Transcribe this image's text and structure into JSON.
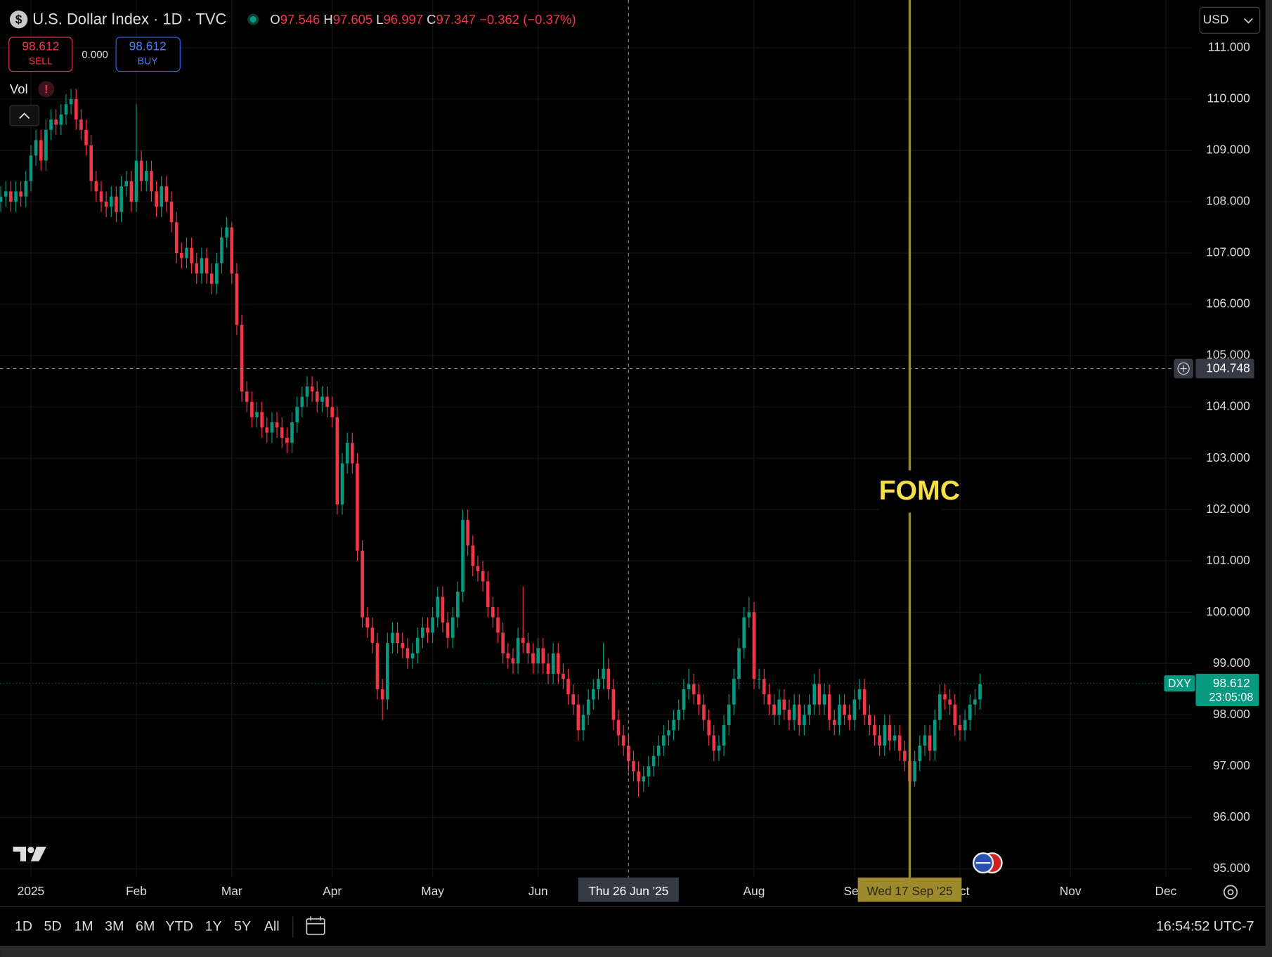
{
  "chart_data": {
    "type": "candlestick",
    "title": "U.S. Dollar Index · 1D · TVC",
    "up_color": "#089981",
    "down_color": "#f23645",
    "open": [
      108.0,
      108.1,
      108.2,
      108.0,
      108.2,
      108.1,
      108.4,
      108.9,
      109.2,
      108.8,
      109.4,
      109.6,
      109.5,
      109.7,
      109.9,
      110.0,
      109.6,
      109.4,
      109.1,
      108.4,
      108.2,
      108.0,
      107.9,
      108.1,
      107.8,
      108.3,
      108.4,
      108.0,
      108.8,
      108.4,
      108.6,
      108.2,
      107.9,
      108.3,
      108.0,
      107.6,
      107.0,
      106.9,
      107.1,
      106.8,
      106.6,
      106.9,
      106.6,
      106.4,
      106.8,
      107.3,
      107.5,
      106.6,
      105.6,
      104.3,
      104.1,
      103.8,
      103.9,
      103.6,
      103.5,
      103.7,
      103.6,
      103.4,
      103.3,
      103.7,
      104.0,
      104.2,
      104.4,
      104.3,
      104.1,
      104.2,
      104.0,
      103.8,
      102.1,
      102.9,
      103.3,
      102.9,
      101.2,
      99.9,
      99.7,
      99.4,
      98.5,
      98.3,
      99.4,
      99.6,
      99.4,
      99.3,
      99.1,
      99.2,
      99.5,
      99.7,
      99.6,
      99.9,
      100.3,
      99.8,
      99.5,
      99.9,
      100.4,
      101.8,
      101.3,
      100.9,
      100.8,
      100.6,
      100.1,
      99.9,
      99.6,
      99.2,
      99.1,
      99.0,
      99.5,
      99.4,
      99.2,
      99.0,
      99.3,
      99.0,
      98.8,
      99.2,
      98.8,
      98.7,
      98.4,
      98.2,
      97.7,
      98.0,
      98.3,
      98.5,
      98.7,
      98.9,
      98.5,
      97.9,
      97.6,
      97.4,
      97.1,
      96.9,
      96.7,
      96.8,
      97.0,
      97.2,
      97.4,
      97.6,
      97.7,
      97.9,
      98.1,
      98.5,
      98.6,
      98.4,
      98.2,
      97.9,
      97.6,
      97.3,
      97.4,
      97.8,
      98.2,
      98.7,
      99.3,
      99.9,
      100.0,
      98.7,
      98.7,
      98.4,
      98.2,
      98.0,
      98.3,
      98.1,
      97.9,
      98.2,
      97.8,
      98.0,
      98.2,
      98.6,
      98.2,
      98.4,
      97.9,
      97.8,
      98.2,
      98.0,
      97.9,
      98.3,
      98.5,
      98.0,
      97.8,
      97.6,
      97.4,
      97.8,
      97.5,
      97.6,
      97.3,
      97.1,
      96.7,
      97.1,
      97.4,
      97.6,
      97.3,
      97.9,
      98.4,
      98.3,
      98.2,
      97.8,
      97.7,
      97.9,
      98.2,
      98.3
    ],
    "high": [
      108.3,
      108.4,
      108.4,
      108.4,
      108.4,
      108.6,
      109.1,
      109.4,
      109.4,
      109.6,
      109.8,
      109.8,
      109.9,
      110.1,
      110.2,
      110.2,
      109.8,
      109.6,
      109.3,
      108.6,
      108.4,
      108.2,
      108.3,
      108.3,
      108.5,
      108.6,
      108.6,
      109.9,
      109.0,
      108.8,
      108.8,
      108.4,
      108.5,
      108.5,
      108.2,
      107.8,
      107.2,
      107.3,
      107.3,
      107.0,
      107.1,
      107.1,
      106.8,
      107.0,
      107.5,
      107.7,
      107.6,
      106.8,
      105.8,
      104.5,
      104.3,
      104.1,
      104.1,
      103.8,
      103.9,
      103.9,
      103.8,
      103.6,
      103.9,
      104.2,
      104.4,
      104.6,
      104.6,
      104.5,
      104.4,
      104.4,
      104.2,
      104.0,
      103.1,
      103.5,
      103.5,
      103.1,
      101.4,
      100.1,
      99.9,
      99.6,
      98.7,
      99.6,
      99.8,
      99.8,
      99.6,
      99.5,
      99.4,
      99.7,
      99.9,
      99.9,
      100.1,
      100.5,
      100.5,
      100.0,
      100.1,
      100.6,
      102.0,
      102.0,
      101.5,
      101.1,
      101.0,
      100.8,
      100.3,
      100.1,
      99.8,
      99.4,
      99.3,
      99.7,
      100.5,
      99.6,
      99.4,
      99.5,
      99.5,
      99.2,
      99.4,
      99.4,
      99.0,
      98.9,
      98.6,
      98.4,
      98.2,
      98.5,
      98.7,
      98.9,
      99.4,
      99.1,
      98.7,
      98.1,
      97.8,
      97.6,
      97.3,
      97.1,
      97.0,
      97.2,
      97.4,
      97.6,
      97.8,
      97.9,
      98.1,
      98.3,
      98.7,
      98.9,
      98.8,
      98.6,
      98.4,
      98.1,
      97.8,
      97.6,
      98.0,
      98.4,
      98.9,
      99.5,
      100.1,
      100.3,
      100.2,
      98.9,
      98.9,
      98.6,
      98.4,
      98.5,
      98.5,
      98.3,
      98.4,
      98.4,
      98.2,
      98.4,
      98.8,
      98.9,
      98.6,
      98.6,
      98.1,
      98.4,
      98.4,
      98.2,
      98.5,
      98.7,
      98.7,
      98.2,
      98.0,
      97.8,
      98.0,
      98.0,
      97.8,
      97.8,
      97.5,
      97.3,
      97.3,
      97.6,
      97.8,
      97.8,
      98.1,
      98.6,
      98.6,
      98.5,
      98.4,
      98.0,
      98.1,
      98.4,
      98.5,
      98.8
    ],
    "low": [
      107.8,
      107.9,
      107.8,
      107.8,
      107.9,
      107.9,
      108.2,
      108.7,
      108.6,
      108.6,
      109.2,
      109.3,
      109.3,
      109.5,
      109.7,
      109.4,
      109.2,
      108.9,
      108.2,
      108.0,
      107.8,
      107.7,
      107.7,
      107.6,
      107.6,
      108.1,
      107.8,
      107.8,
      108.2,
      108.2,
      108.0,
      107.7,
      107.7,
      107.8,
      107.4,
      106.8,
      106.7,
      106.7,
      106.6,
      106.4,
      106.4,
      106.4,
      106.2,
      106.2,
      106.6,
      107.1,
      106.4,
      105.4,
      104.1,
      103.9,
      103.6,
      103.6,
      103.4,
      103.3,
      103.3,
      103.4,
      103.2,
      103.1,
      103.1,
      103.5,
      103.8,
      104.0,
      104.1,
      103.9,
      103.9,
      103.8,
      103.6,
      101.9,
      101.9,
      102.7,
      102.7,
      101.0,
      99.7,
      99.5,
      99.2,
      98.3,
      97.9,
      98.1,
      99.2,
      99.2,
      99.1,
      98.9,
      98.9,
      99.0,
      99.3,
      99.4,
      99.4,
      99.7,
      99.6,
      99.3,
      99.3,
      99.7,
      100.2,
      101.1,
      100.7,
      100.6,
      100.4,
      99.9,
      99.7,
      99.4,
      99.0,
      98.9,
      98.8,
      98.8,
      99.2,
      99.0,
      98.8,
      98.8,
      98.8,
      98.6,
      98.6,
      98.6,
      98.5,
      98.2,
      98.0,
      97.5,
      97.5,
      97.8,
      98.1,
      98.3,
      98.5,
      98.3,
      97.7,
      97.4,
      97.2,
      96.9,
      96.7,
      96.4,
      96.5,
      96.6,
      96.8,
      97.0,
      97.2,
      97.4,
      97.5,
      97.7,
      97.9,
      98.3,
      98.2,
      98.0,
      97.7,
      97.4,
      97.1,
      97.1,
      97.2,
      97.6,
      98.0,
      98.5,
      99.1,
      99.7,
      98.5,
      98.5,
      98.2,
      98.0,
      97.8,
      97.8,
      97.9,
      97.7,
      97.7,
      97.6,
      97.6,
      97.8,
      98.0,
      98.0,
      98.0,
      97.7,
      97.6,
      97.6,
      97.8,
      97.7,
      97.7,
      98.1,
      97.8,
      97.6,
      97.4,
      97.2,
      97.2,
      97.3,
      97.3,
      97.1,
      96.9,
      96.6,
      96.6,
      96.9,
      97.2,
      97.1,
      97.1,
      97.7,
      98.1,
      98.0,
      97.6,
      97.5,
      97.5,
      97.7,
      98.0,
      98.1
    ],
    "close": [
      108.1,
      108.2,
      108.0,
      108.2,
      108.1,
      108.4,
      108.9,
      109.2,
      108.8,
      109.4,
      109.6,
      109.5,
      109.7,
      109.9,
      110.0,
      109.6,
      109.4,
      109.1,
      108.4,
      108.2,
      108.0,
      107.9,
      108.1,
      107.8,
      108.3,
      108.4,
      108.0,
      108.8,
      108.4,
      108.6,
      108.2,
      107.9,
      108.3,
      108.0,
      107.6,
      107.0,
      106.9,
      107.1,
      106.8,
      106.6,
      106.9,
      106.6,
      106.4,
      106.8,
      107.3,
      107.5,
      106.6,
      105.6,
      104.3,
      104.1,
      103.8,
      103.9,
      103.6,
      103.5,
      103.7,
      103.6,
      103.4,
      103.3,
      103.7,
      104.0,
      104.2,
      104.4,
      104.3,
      104.1,
      104.2,
      104.0,
      103.8,
      102.1,
      102.9,
      103.3,
      102.9,
      101.2,
      99.9,
      99.7,
      99.4,
      98.5,
      98.3,
      99.4,
      99.6,
      99.4,
      99.3,
      99.1,
      99.2,
      99.5,
      99.7,
      99.6,
      99.9,
      100.3,
      99.8,
      99.5,
      99.9,
      100.4,
      101.8,
      101.3,
      100.9,
      100.8,
      100.6,
      100.1,
      99.9,
      99.6,
      99.2,
      99.1,
      99.0,
      99.5,
      99.4,
      99.2,
      99.0,
      99.3,
      99.0,
      98.8,
      99.2,
      98.8,
      98.7,
      98.4,
      98.2,
      97.7,
      98.0,
      98.3,
      98.5,
      98.7,
      98.9,
      98.5,
      97.9,
      97.6,
      97.4,
      97.1,
      96.9,
      96.7,
      96.8,
      97.0,
      97.2,
      97.4,
      97.6,
      97.7,
      97.9,
      98.1,
      98.5,
      98.6,
      98.4,
      98.2,
      97.9,
      97.6,
      97.3,
      97.4,
      97.8,
      98.2,
      98.7,
      99.3,
      99.9,
      100.0,
      98.7,
      98.7,
      98.4,
      98.2,
      98.0,
      98.3,
      98.1,
      97.9,
      98.2,
      97.8,
      98.0,
      98.2,
      98.6,
      98.2,
      98.4,
      97.9,
      97.8,
      98.2,
      98.0,
      97.9,
      98.3,
      98.5,
      98.0,
      97.8,
      97.6,
      97.4,
      97.8,
      97.5,
      97.6,
      97.3,
      97.1,
      96.7,
      97.1,
      97.4,
      97.6,
      97.3,
      97.9,
      98.4,
      98.3,
      98.2,
      97.8,
      97.7,
      97.9,
      98.2,
      98.3,
      98.6
    ],
    "xlim": [
      -0.14,
      237.3
    ],
    "xticks": [
      {
        "value": 6,
        "label": "2025"
      },
      {
        "value": 27,
        "label": "Feb"
      },
      {
        "value": 46,
        "label": "Mar"
      },
      {
        "value": 66,
        "label": "Apr"
      },
      {
        "value": 86,
        "label": "May"
      },
      {
        "value": 107,
        "label": "Jun"
      },
      {
        "value": 150,
        "label": "Aug"
      },
      {
        "value": 170,
        "label": "Sep"
      },
      {
        "value": 191,
        "label": "Oct"
      },
      {
        "value": 213,
        "label": "Nov"
      },
      {
        "value": 232,
        "label": "Dec"
      }
    ],
    "ylim": [
      94.83,
      111.93
    ],
    "yticks": [
      {
        "value": 95,
        "label": "95.000"
      },
      {
        "value": 96,
        "label": "96.000"
      },
      {
        "value": 97,
        "label": "97.000"
      },
      {
        "value": 98,
        "label": "98.000"
      },
      {
        "value": 99,
        "label": "99.000"
      },
      {
        "value": 100,
        "label": "100.000"
      },
      {
        "value": 101,
        "label": "101.000"
      },
      {
        "value": 102,
        "label": "102.000"
      },
      {
        "value": 103,
        "label": "103.000"
      },
      {
        "value": 104,
        "label": "104.000"
      },
      {
        "value": 105,
        "label": "105.000"
      },
      {
        "value": 106,
        "label": "106.000"
      },
      {
        "value": 107,
        "label": "107.000"
      },
      {
        "value": 108,
        "label": "108.000"
      },
      {
        "value": 109,
        "label": "109.000"
      },
      {
        "value": 110,
        "label": "110.000"
      },
      {
        "value": 111,
        "label": "111.000"
      }
    ],
    "grid": true,
    "crosshair": {
      "index": 125,
      "date_label": "Thu 26 Jun '25",
      "price": 104.748
    },
    "event": {
      "index": 181,
      "label": "FOMC",
      "date_label": "Wed 17 Sep '25",
      "color": "#9c8a2c"
    },
    "symbol": "DXY",
    "last_price": 98.612,
    "countdown": "23:05:08",
    "legend": {
      "ohlc": [
        {
          "key": "O",
          "value": 97.546
        },
        {
          "key": "H",
          "value": 97.605
        },
        {
          "key": "L",
          "value": 96.997
        },
        {
          "key": "C",
          "value": 97.347
        }
      ],
      "change": "−0.362",
      "change_pct": "(−0.37%)"
    }
  },
  "trade": {
    "sell_price": 98.612,
    "sell": "SELL",
    "spread": "0.000",
    "buy_price": 98.612,
    "buy": "BUY"
  },
  "indicator": "Vol",
  "currency": "USD",
  "toolbar": {
    "ranges": [
      "1D",
      "5D",
      "1M",
      "3M",
      "6M",
      "YTD",
      "1Y",
      "5Y",
      "All"
    ],
    "time": "16:54:52 UTC-7"
  }
}
